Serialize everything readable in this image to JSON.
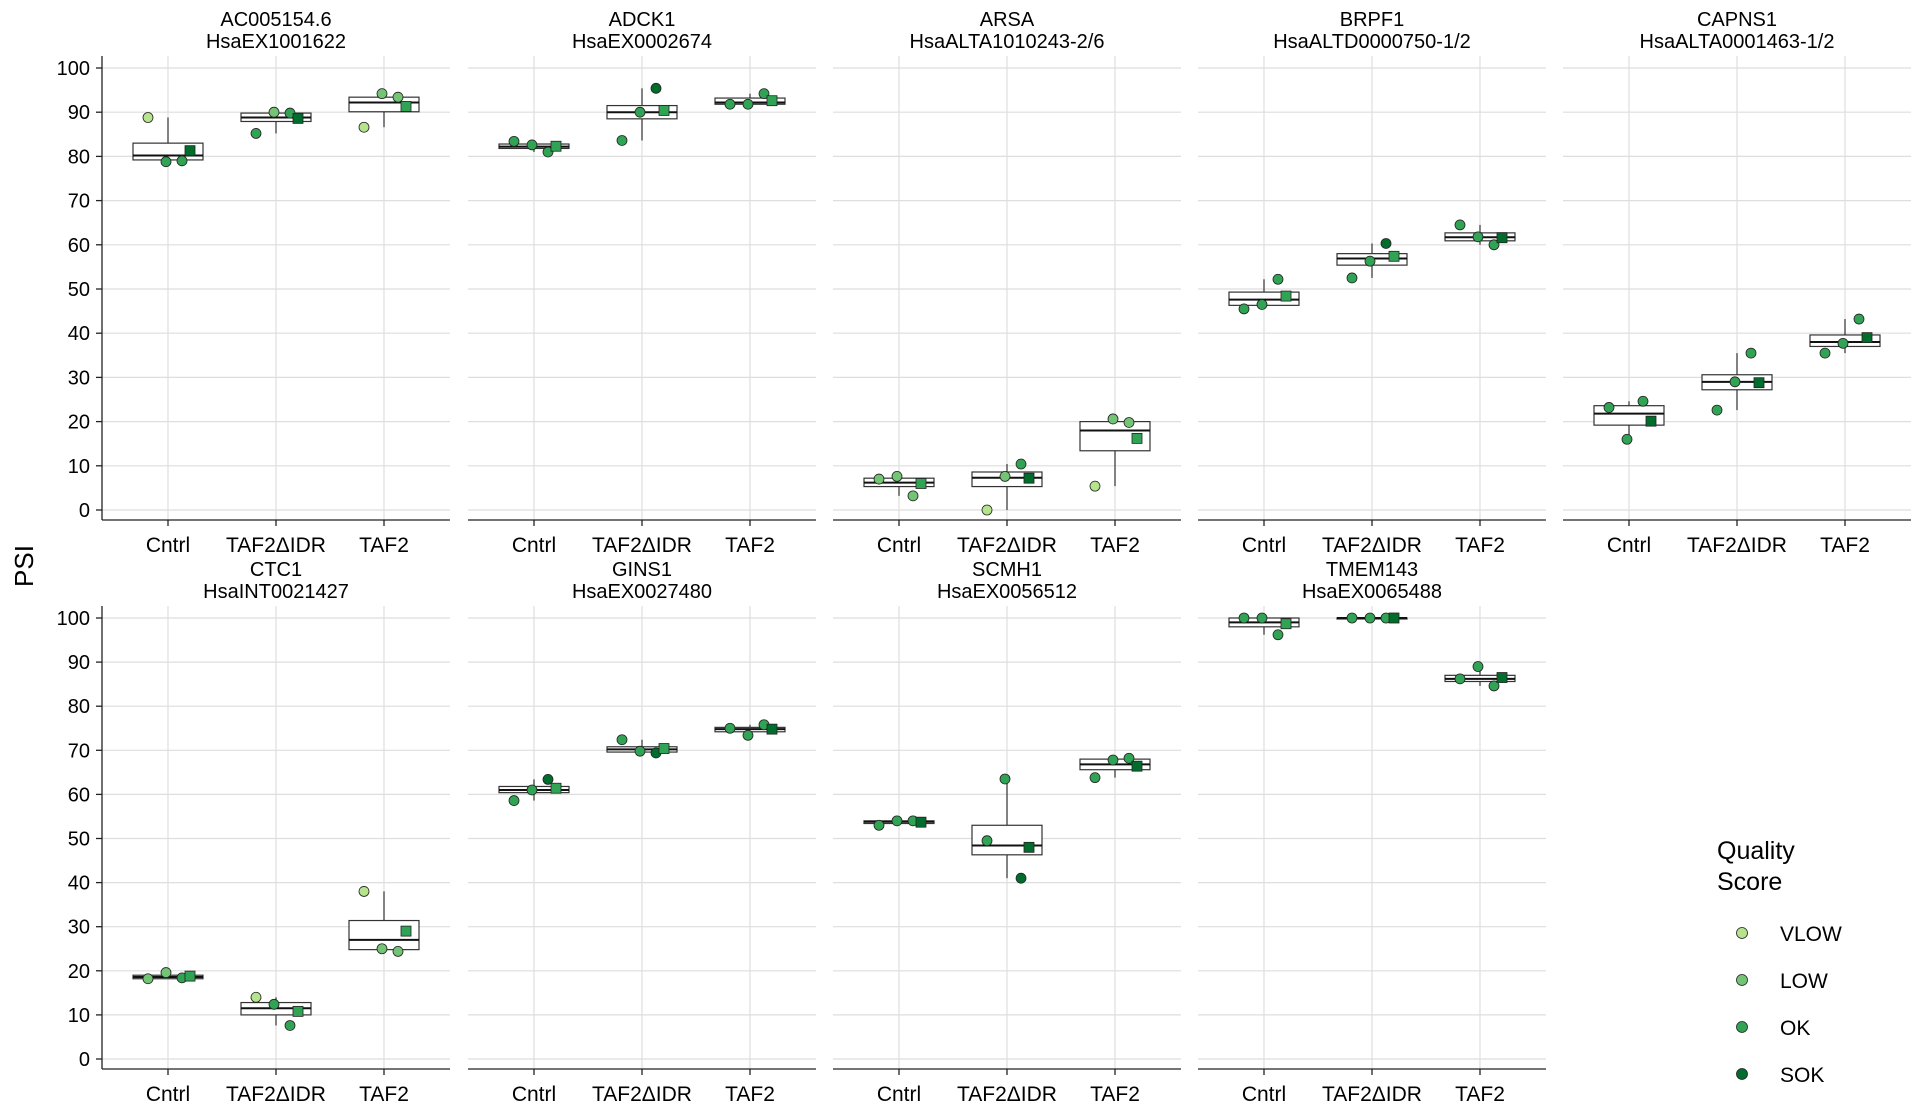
{
  "chart_data": {
    "type": "boxplot",
    "ylabel": "PSI",
    "ylim": [
      0,
      100
    ],
    "yticks": [
      0,
      10,
      20,
      30,
      40,
      50,
      60,
      70,
      80,
      90,
      100
    ],
    "categories": [
      "Cntrl",
      "TAF2ΔIDR",
      "TAF2"
    ],
    "grid": true,
    "legend": {
      "title": "Quality\nScore",
      "position": "bottom-right",
      "items": [
        {
          "label": "VLOW",
          "color": "#b5e48c"
        },
        {
          "label": "LOW",
          "color": "#74c476"
        },
        {
          "label": "OK",
          "color": "#31a354"
        },
        {
          "label": "SOK",
          "color": "#006d2c"
        }
      ]
    },
    "panels": [
      {
        "gene": "AC005154.6",
        "event": "HsaEX1001622",
        "boxes": [
          {
            "q1": 79.2,
            "median": 80.2,
            "q3": 83.0,
            "lo": 78.8,
            "hi": 88.8
          },
          {
            "q1": 87.9,
            "median": 88.8,
            "q3": 89.8,
            "lo": 85.2,
            "hi": 90.0
          },
          {
            "q1": 90.1,
            "median": 92.2,
            "q3": 93.4,
            "lo": 86.6,
            "hi": 94.2
          }
        ],
        "points": [
          [
            {
              "v": 88.8,
              "q": "VLOW"
            },
            {
              "v": 78.8,
              "q": "OK"
            },
            {
              "v": 79.0,
              "q": "OK"
            }
          ],
          [
            {
              "v": 85.2,
              "q": "OK"
            },
            {
              "v": 90.0,
              "q": "LOW"
            },
            {
              "v": 89.8,
              "q": "OK"
            }
          ],
          [
            {
              "v": 86.6,
              "q": "VLOW"
            },
            {
              "v": 94.2,
              "q": "LOW"
            },
            {
              "v": 93.4,
              "q": "LOW"
            }
          ]
        ],
        "means": [
          {
            "v": 81.3,
            "q": "SOK"
          },
          {
            "v": 88.6,
            "q": "SOK"
          },
          {
            "v": 91.3,
            "q": "OK"
          }
        ]
      },
      {
        "gene": "ADCK1",
        "event": "HsaEX0002674",
        "boxes": [
          {
            "q1": 81.8,
            "median": 82.2,
            "q3": 82.8,
            "lo": 81.0,
            "hi": 83.4
          },
          {
            "q1": 88.5,
            "median": 90.0,
            "q3": 91.5,
            "lo": 83.6,
            "hi": 95.4
          },
          {
            "q1": 91.8,
            "median": 92.2,
            "q3": 93.2,
            "lo": 91.8,
            "hi": 94.2
          }
        ],
        "points": [
          [
            {
              "v": 83.4,
              "q": "OK"
            },
            {
              "v": 82.6,
              "q": "OK"
            },
            {
              "v": 81.0,
              "q": "OK"
            }
          ],
          [
            {
              "v": 83.6,
              "q": "OK"
            },
            {
              "v": 90.0,
              "q": "OK"
            },
            {
              "v": 95.4,
              "q": "SOK"
            }
          ],
          [
            {
              "v": 91.8,
              "q": "OK"
            },
            {
              "v": 91.8,
              "q": "OK"
            },
            {
              "v": 94.2,
              "q": "OK"
            }
          ]
        ],
        "means": [
          {
            "v": 82.3,
            "q": "OK"
          },
          {
            "v": 90.4,
            "q": "OK"
          },
          {
            "v": 92.6,
            "q": "OK"
          }
        ]
      },
      {
        "gene": "ARSA",
        "event": "HsaALTA1010243-2/6",
        "boxes": [
          {
            "q1": 5.3,
            "median": 6.2,
            "q3": 7.2,
            "lo": 3.2,
            "hi": 7.6
          },
          {
            "q1": 5.3,
            "median": 7.3,
            "q3": 8.6,
            "lo": 0.0,
            "hi": 10.4
          },
          {
            "q1": 13.4,
            "median": 18.0,
            "q3": 20.0,
            "lo": 5.4,
            "hi": 20.6
          }
        ],
        "points": [
          [
            {
              "v": 7.0,
              "q": "LOW"
            },
            {
              "v": 7.6,
              "q": "LOW"
            },
            {
              "v": 3.2,
              "q": "LOW"
            }
          ],
          [
            {
              "v": 0.0,
              "q": "VLOW"
            },
            {
              "v": 7.6,
              "q": "LOW"
            },
            {
              "v": 10.4,
              "q": "OK"
            }
          ],
          [
            {
              "v": 5.4,
              "q": "VLOW"
            },
            {
              "v": 20.6,
              "q": "LOW"
            },
            {
              "v": 19.8,
              "q": "LOW"
            }
          ]
        ],
        "means": [
          {
            "v": 6.0,
            "q": "OK"
          },
          {
            "v": 7.2,
            "q": "SOK"
          },
          {
            "v": 16.2,
            "q": "OK"
          }
        ]
      },
      {
        "gene": "BRPF1",
        "event": "HsaALTD0000750-1/2",
        "boxes": [
          {
            "q1": 46.3,
            "median": 47.6,
            "q3": 49.3,
            "lo": 45.5,
            "hi": 52.2
          },
          {
            "q1": 55.4,
            "median": 56.9,
            "q3": 58.0,
            "lo": 52.5,
            "hi": 60.3
          },
          {
            "q1": 60.9,
            "median": 61.7,
            "q3": 62.7,
            "lo": 60.0,
            "hi": 64.5
          }
        ],
        "points": [
          [
            {
              "v": 45.5,
              "q": "OK"
            },
            {
              "v": 46.5,
              "q": "OK"
            },
            {
              "v": 52.2,
              "q": "OK"
            }
          ],
          [
            {
              "v": 52.5,
              "q": "OK"
            },
            {
              "v": 56.3,
              "q": "OK"
            },
            {
              "v": 60.3,
              "q": "SOK"
            }
          ],
          [
            {
              "v": 64.5,
              "q": "OK"
            },
            {
              "v": 61.8,
              "q": "OK"
            },
            {
              "v": 60.0,
              "q": "OK"
            }
          ]
        ],
        "means": [
          {
            "v": 48.4,
            "q": "OK"
          },
          {
            "v": 57.4,
            "q": "OK"
          },
          {
            "v": 61.6,
            "q": "SOK"
          }
        ]
      },
      {
        "gene": "CAPNS1",
        "event": "HsaALTA0001463-1/2",
        "boxes": [
          {
            "q1": 19.2,
            "median": 21.8,
            "q3": 23.6,
            "lo": 16.0,
            "hi": 24.6
          },
          {
            "q1": 27.2,
            "median": 29.0,
            "q3": 30.6,
            "lo": 22.6,
            "hi": 35.5
          },
          {
            "q1": 37.0,
            "median": 38.0,
            "q3": 39.6,
            "lo": 35.5,
            "hi": 43.2
          }
        ],
        "points": [
          [
            {
              "v": 23.2,
              "q": "OK"
            },
            {
              "v": 16.0,
              "q": "OK"
            },
            {
              "v": 24.6,
              "q": "OK"
            }
          ],
          [
            {
              "v": 22.6,
              "q": "OK"
            },
            {
              "v": 29.0,
              "q": "OK"
            },
            {
              "v": 35.5,
              "q": "OK"
            }
          ],
          [
            {
              "v": 35.5,
              "q": "OK"
            },
            {
              "v": 37.7,
              "q": "OK"
            },
            {
              "v": 43.2,
              "q": "OK"
            }
          ]
        ],
        "means": [
          {
            "v": 20.1,
            "q": "SOK"
          },
          {
            "v": 28.8,
            "q": "SOK"
          },
          {
            "v": 39.0,
            "q": "SOK"
          }
        ]
      },
      {
        "gene": "CTC1",
        "event": "HsaINT0021427",
        "boxes": [
          {
            "q1": 18.2,
            "median": 18.6,
            "q3": 19.0,
            "lo": 18.2,
            "hi": 19.6
          },
          {
            "q1": 10.0,
            "median": 11.5,
            "q3": 12.8,
            "lo": 7.6,
            "hi": 14.0
          },
          {
            "q1": 24.8,
            "median": 27.0,
            "q3": 31.4,
            "lo": 24.4,
            "hi": 38.0
          }
        ],
        "points": [
          [
            {
              "v": 18.2,
              "q": "LOW"
            },
            {
              "v": 19.6,
              "q": "LOW"
            },
            {
              "v": 18.4,
              "q": "OK"
            }
          ],
          [
            {
              "v": 14.0,
              "q": "VLOW"
            },
            {
              "v": 12.4,
              "q": "OK"
            },
            {
              "v": 7.6,
              "q": "OK"
            }
          ],
          [
            {
              "v": 38.0,
              "q": "VLOW"
            },
            {
              "v": 25.0,
              "q": "LOW"
            },
            {
              "v": 24.4,
              "q": "LOW"
            }
          ]
        ],
        "means": [
          {
            "v": 18.8,
            "q": "OK"
          },
          {
            "v": 10.8,
            "q": "OK"
          },
          {
            "v": 29.0,
            "q": "OK"
          }
        ]
      },
      {
        "gene": "GINS1",
        "event": "HsaEX0027480",
        "boxes": [
          {
            "q1": 60.4,
            "median": 61.0,
            "q3": 61.8,
            "lo": 58.6,
            "hi": 63.4
          },
          {
            "q1": 69.6,
            "median": 70.2,
            "q3": 70.8,
            "lo": 69.4,
            "hi": 72.4
          },
          {
            "q1": 74.2,
            "median": 74.8,
            "q3": 75.2,
            "lo": 73.4,
            "hi": 75.8
          }
        ],
        "points": [
          [
            {
              "v": 58.6,
              "q": "OK"
            },
            {
              "v": 61.0,
              "q": "OK"
            },
            {
              "v": 63.4,
              "q": "SOK"
            }
          ],
          [
            {
              "v": 72.4,
              "q": "OK"
            },
            {
              "v": 69.8,
              "q": "OK"
            },
            {
              "v": 69.4,
              "q": "SOK"
            }
          ],
          [
            {
              "v": 75.0,
              "q": "OK"
            },
            {
              "v": 73.4,
              "q": "OK"
            },
            {
              "v": 75.8,
              "q": "OK"
            }
          ]
        ],
        "means": [
          {
            "v": 61.4,
            "q": "OK"
          },
          {
            "v": 70.4,
            "q": "OK"
          },
          {
            "v": 74.8,
            "q": "SOK"
          }
        ]
      },
      {
        "gene": "SCMH1",
        "event": "HsaEX0056512",
        "boxes": [
          {
            "q1": 53.4,
            "median": 53.8,
            "q3": 54.0,
            "lo": 53.0,
            "hi": 54.0
          },
          {
            "q1": 46.3,
            "median": 48.4,
            "q3": 53.0,
            "lo": 41.0,
            "hi": 63.5
          },
          {
            "q1": 65.6,
            "median": 66.8,
            "q3": 68.0,
            "lo": 63.8,
            "hi": 68.2
          }
        ],
        "points": [
          [
            {
              "v": 53.0,
              "q": "OK"
            },
            {
              "v": 54.0,
              "q": "OK"
            },
            {
              "v": 54.0,
              "q": "OK"
            }
          ],
          [
            {
              "v": 49.5,
              "q": "OK"
            },
            {
              "v": 63.5,
              "q": "OK"
            },
            {
              "v": 41.0,
              "q": "SOK"
            }
          ],
          [
            {
              "v": 63.8,
              "q": "OK"
            },
            {
              "v": 67.8,
              "q": "OK"
            },
            {
              "v": 68.2,
              "q": "OK"
            }
          ]
        ],
        "means": [
          {
            "v": 53.7,
            "q": "SOK"
          },
          {
            "v": 48.0,
            "q": "SOK"
          },
          {
            "v": 66.4,
            "q": "SOK"
          }
        ]
      },
      {
        "gene": "TMEM143",
        "event": "HsaEX0065488",
        "boxes": [
          {
            "q1": 98.0,
            "median": 99.0,
            "q3": 100.0,
            "lo": 96.2,
            "hi": 100.0
          },
          {
            "q1": 100.0,
            "median": 100.0,
            "q3": 100.0,
            "lo": 100.0,
            "hi": 100.0
          },
          {
            "q1": 85.6,
            "median": 86.2,
            "q3": 87.0,
            "lo": 84.6,
            "hi": 89.0
          }
        ],
        "points": [
          [
            {
              "v": 100.0,
              "q": "OK"
            },
            {
              "v": 100.0,
              "q": "OK"
            },
            {
              "v": 96.2,
              "q": "OK"
            }
          ],
          [
            {
              "v": 100.0,
              "q": "OK"
            },
            {
              "v": 100.0,
              "q": "OK"
            },
            {
              "v": 100.0,
              "q": "OK"
            }
          ],
          [
            {
              "v": 86.2,
              "q": "OK"
            },
            {
              "v": 89.0,
              "q": "OK"
            },
            {
              "v": 84.6,
              "q": "OK"
            }
          ]
        ],
        "means": [
          {
            "v": 98.7,
            "q": "OK"
          },
          {
            "v": 100.0,
            "q": "SOK"
          },
          {
            "v": 86.5,
            "q": "SOK"
          }
        ]
      }
    ]
  }
}
